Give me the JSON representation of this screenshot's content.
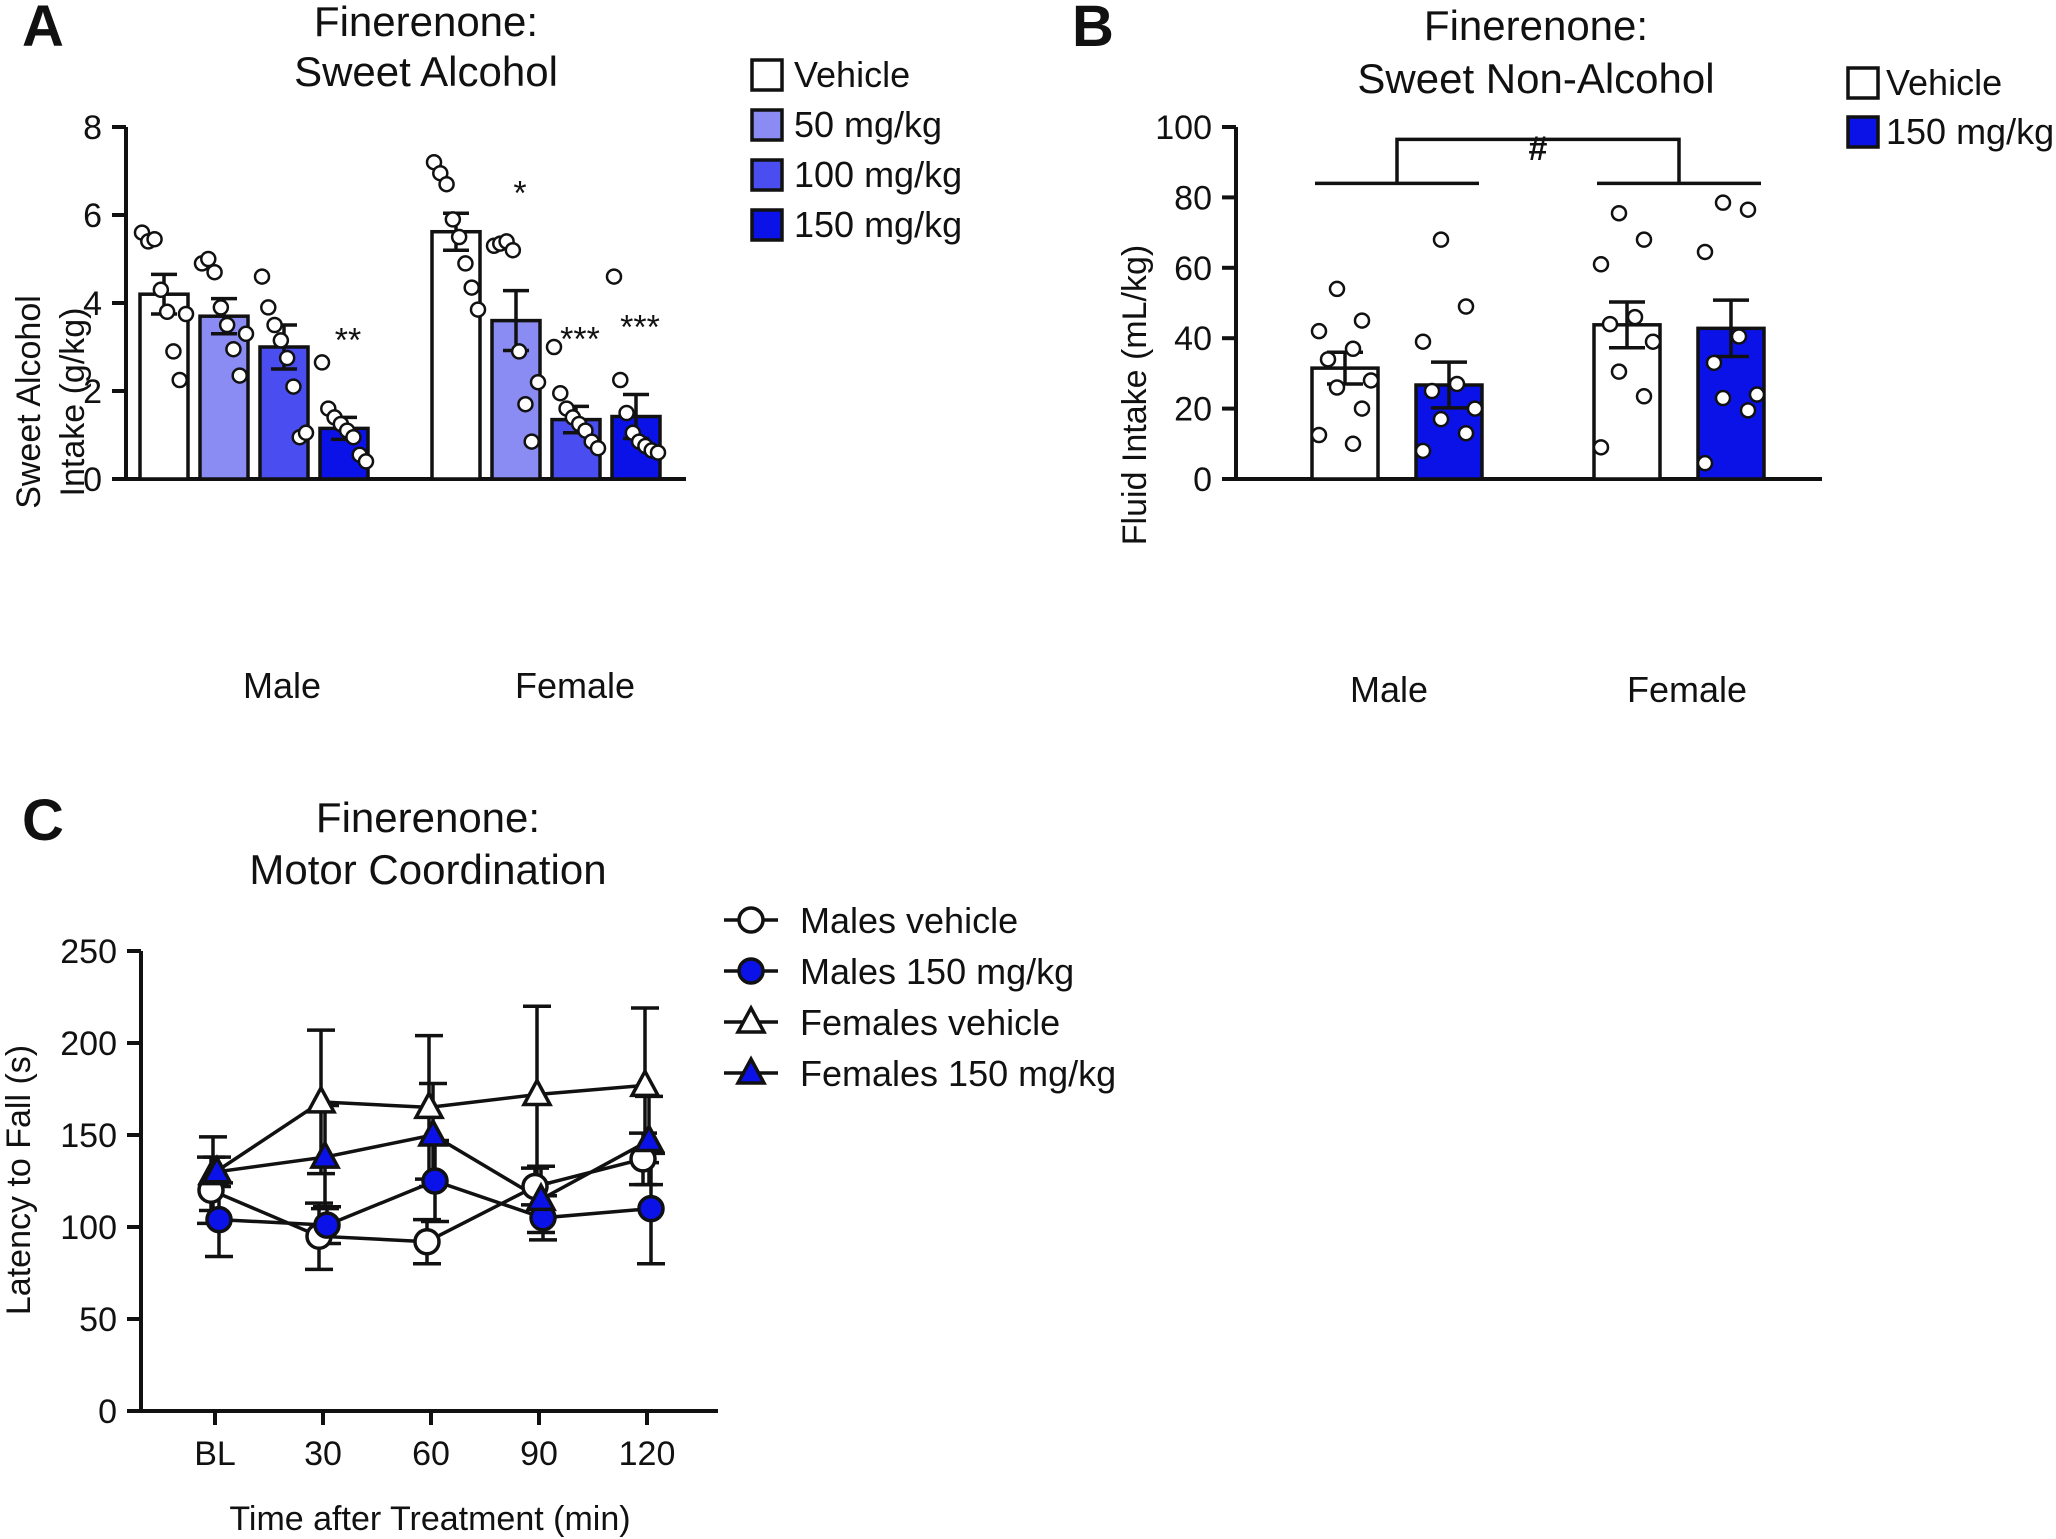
{
  "colors": {
    "vehicle": "#ffffff",
    "dose50": "#8a8cf4",
    "dose100": "#4a4ef0",
    "dose150": "#0b12e8",
    "stroke": "#111111"
  },
  "chart_data": [
    {
      "panel": "A",
      "type": "bar",
      "title": [
        "Finerenone:",
        "Sweet Alcohol"
      ],
      "ylabel": [
        "Sweet Alcohol",
        "Intake (g/kg)"
      ],
      "xlabel": "",
      "ylim": [
        0,
        8
      ],
      "yticks": [
        0,
        2,
        4,
        6,
        8
      ],
      "categories": [
        "Male",
        "Female"
      ],
      "legend_position": "top-right",
      "series": [
        {
          "name": "Vehicle",
          "color": "#ffffff",
          "values": [
            4.2,
            5.62
          ],
          "sem": [
            0.45,
            0.42
          ],
          "points": [
            [
              5.6,
              5.4,
              5.45,
              4.3,
              3.8,
              2.9,
              2.25,
              3.75
            ],
            [
              7.2,
              6.95,
              6.7,
              5.9,
              5.5,
              4.9,
              4.35,
              3.85
            ]
          ],
          "sig": [
            "",
            ""
          ]
        },
        {
          "name": "50 mg/kg",
          "color": "#8a8cf4",
          "values": [
            3.7,
            3.6
          ],
          "sem": [
            0.4,
            0.68
          ],
          "points": [
            [
              4.9,
              5.0,
              4.7,
              3.9,
              3.5,
              2.95,
              2.35,
              3.3
            ],
            [
              5.3,
              5.35,
              5.4,
              5.2,
              2.9,
              1.7,
              0.85,
              2.2
            ]
          ],
          "sig": [
            "",
            "*"
          ]
        },
        {
          "name": "100 mg/kg",
          "color": "#4a4ef0",
          "values": [
            3.0,
            1.35
          ],
          "sem": [
            0.5,
            0.3
          ],
          "points": [
            [
              4.6,
              3.9,
              3.5,
              3.15,
              2.75,
              2.1,
              0.95,
              1.05
            ],
            [
              3.0,
              1.95,
              1.6,
              1.4,
              1.25,
              1.1,
              0.85,
              0.7
            ]
          ],
          "sig": [
            "",
            "***"
          ]
        },
        {
          "name": "150 mg/kg",
          "color": "#0b12e8",
          "values": [
            1.15,
            1.42
          ],
          "sem": [
            0.25,
            0.5
          ],
          "points": [
            [
              2.65,
              1.6,
              1.4,
              1.25,
              1.1,
              0.95,
              0.55,
              0.4
            ],
            [
              4.6,
              2.25,
              1.5,
              1.05,
              0.85,
              0.75,
              0.65,
              0.6
            ]
          ],
          "sig": [
            "**",
            "***"
          ]
        }
      ]
    },
    {
      "panel": "B",
      "type": "bar",
      "title": [
        "Finerenone:",
        "Sweet Non-Alcohol"
      ],
      "ylabel": "Fluid Intake (mL/kg)",
      "xlabel": "",
      "ylim": [
        0,
        100
      ],
      "yticks": [
        0,
        20,
        40,
        60,
        80,
        100
      ],
      "categories": [
        "Male",
        "Female"
      ],
      "legend_position": "top-right",
      "annotation": "#",
      "series": [
        {
          "name": "Vehicle",
          "color": "#ffffff",
          "values": [
            31.5,
            43.8
          ],
          "sem": [
            4.5,
            6.5
          ],
          "points": [
            [
              54,
              45,
              42,
              37,
              34,
              28,
              26,
              20,
              12.5,
              10
            ],
            [
              75.5,
              68,
              61,
              46,
              44,
              39,
              30.5,
              23.5,
              9
            ]
          ],
          "sig": [
            "",
            ""
          ]
        },
        {
          "name": "150 mg/kg",
          "color": "#0b12e8",
          "values": [
            26.7,
            42.8
          ],
          "sem": [
            6.5,
            8
          ],
          "points": [
            [
              68,
              49,
              39,
              27,
              25,
              20,
              17,
              13,
              8
            ],
            [
              78.5,
              76.5,
              64.5,
              40.5,
              33,
              24,
              23,
              19.5,
              4.5
            ]
          ],
          "sig": [
            "",
            ""
          ]
        }
      ]
    },
    {
      "panel": "C",
      "type": "line",
      "title": [
        "Finerenone:",
        "Motor Coordination"
      ],
      "ylabel": "Latency to Fall (s)",
      "xlabel": "Time after Treatment (min)",
      "ylim": [
        0,
        250
      ],
      "yticks": [
        0,
        50,
        100,
        150,
        200,
        250
      ],
      "categories": [
        "BL",
        "30",
        "60",
        "90",
        "120"
      ],
      "legend_position": "right",
      "series": [
        {
          "name": "Males vehicle",
          "marker": "circle",
          "fill": "#ffffff",
          "values": [
            120,
            95,
            92,
            122,
            137
          ],
          "err": [
            18,
            18,
            12,
            10,
            14
          ]
        },
        {
          "name": "Males 150 mg/kg",
          "marker": "circle",
          "fill": "#0b12e8",
          "values": [
            104,
            101,
            125,
            105,
            110
          ],
          "err": [
            20,
            10,
            22,
            12,
            30
          ]
        },
        {
          "name": "Females vehicle",
          "marker": "triangle",
          "fill": "#ffffff",
          "values": [
            129,
            168,
            165,
            172,
            177
          ],
          "err": [
            20,
            39,
            39,
            48,
            42
          ]
        },
        {
          "name": "Females 150 mg/kg",
          "marker": "triangle",
          "fill": "#0b12e8",
          "values": [
            130,
            138,
            150,
            115,
            147
          ],
          "err": [
            8,
            28,
            28,
            18,
            24
          ]
        }
      ]
    }
  ],
  "panel_letters": [
    "A",
    "B",
    "C"
  ]
}
